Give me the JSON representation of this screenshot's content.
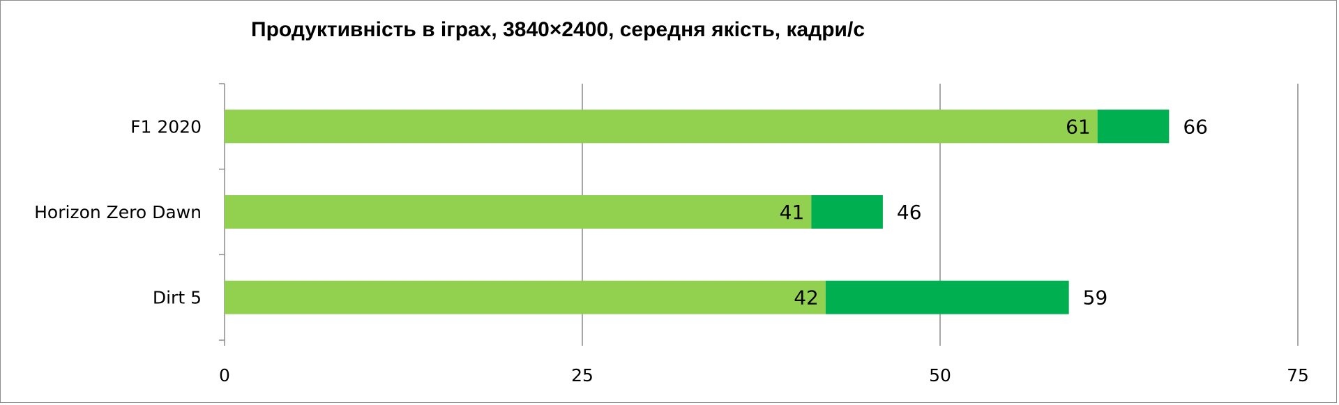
{
  "chart_data": {
    "type": "bar",
    "orientation": "horizontal",
    "stacked": true,
    "title": "Продуктивність в іграх, 3840×2400, середня якість, кадри/с",
    "categories": [
      "F1 2020",
      "Horizon Zero Dawn",
      "Dirt 5"
    ],
    "series": [
      {
        "values": [
          61,
          41,
          42
        ],
        "color": "#92d050"
      },
      {
        "values": [
          5,
          5,
          17
        ],
        "color": "#00b050"
      }
    ],
    "totals": [
      66,
      46,
      59
    ],
    "xlim": [
      0,
      75
    ],
    "xticks": [
      0,
      25,
      50,
      75
    ],
    "grid": true,
    "legend": "none"
  }
}
